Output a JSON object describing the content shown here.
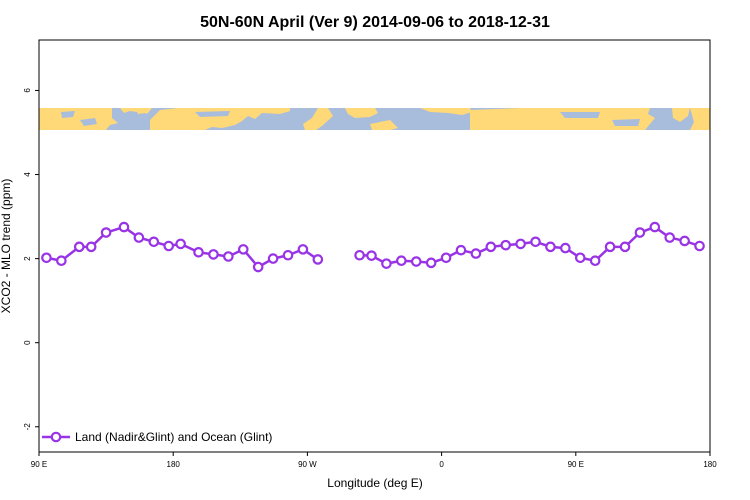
{
  "chart_data": {
    "type": "line",
    "title": "50N-60N April (Ver 9)   2014-09-06 to 2018-12-31",
    "xlabel": "Longitude (deg E)",
    "ylabel": "XCO2 - MLO trend (ppm)",
    "x_tick_labels": [
      "90 E",
      "180",
      "90 W",
      "0",
      "90 E",
      "180"
    ],
    "x_tick_values": [
      90,
      180,
      270,
      360,
      450,
      540
    ],
    "xlim": [
      90,
      540
    ],
    "ylim": [
      -2.6,
      7.2
    ],
    "y_ticks": [
      -2,
      0,
      2,
      4,
      6
    ],
    "y_tick_labels": [
      "-2",
      "0",
      "2",
      "4",
      "6"
    ],
    "grid": false,
    "legend_position": "bottom-left",
    "map_strip": {
      "y_range": [
        5.0,
        5.55
      ],
      "ocean_color": "#a8bcdc",
      "land_color": "#ffd878"
    },
    "series": [
      {
        "name": "Land (Nadir&Glint) and Ocean (Glint)",
        "color": "#9933e6",
        "segments": [
          {
            "x": [
              95,
              105,
              117,
              125,
              135,
              147,
              157,
              167,
              177,
              185,
              197,
              207,
              217,
              227,
              237,
              247,
              257,
              267,
              277
            ],
            "y": [
              2.02,
              1.95,
              2.28,
              2.28,
              2.62,
              2.75,
              2.5,
              2.4,
              2.3,
              2.35,
              2.15,
              2.1,
              2.05,
              2.22,
              1.8,
              2.0,
              2.08,
              2.22,
              1.98
            ]
          },
          {
            "x": [
              305,
              313,
              323,
              333,
              343,
              353,
              363,
              373,
              383,
              393,
              403,
              413,
              423,
              433,
              443,
              453,
              463,
              473,
              483,
              493,
              503,
              513,
              523,
              533
            ],
            "y": [
              2.08,
              2.07,
              1.88,
              1.95,
              1.93,
              1.9,
              2.02,
              2.2,
              2.12,
              2.28,
              2.32,
              2.35,
              2.4,
              2.28,
              2.25,
              2.02,
              1.95,
              2.28,
              2.28,
              2.62,
              2.75,
              2.5,
              2.42,
              2.3
            ]
          }
        ]
      }
    ]
  }
}
